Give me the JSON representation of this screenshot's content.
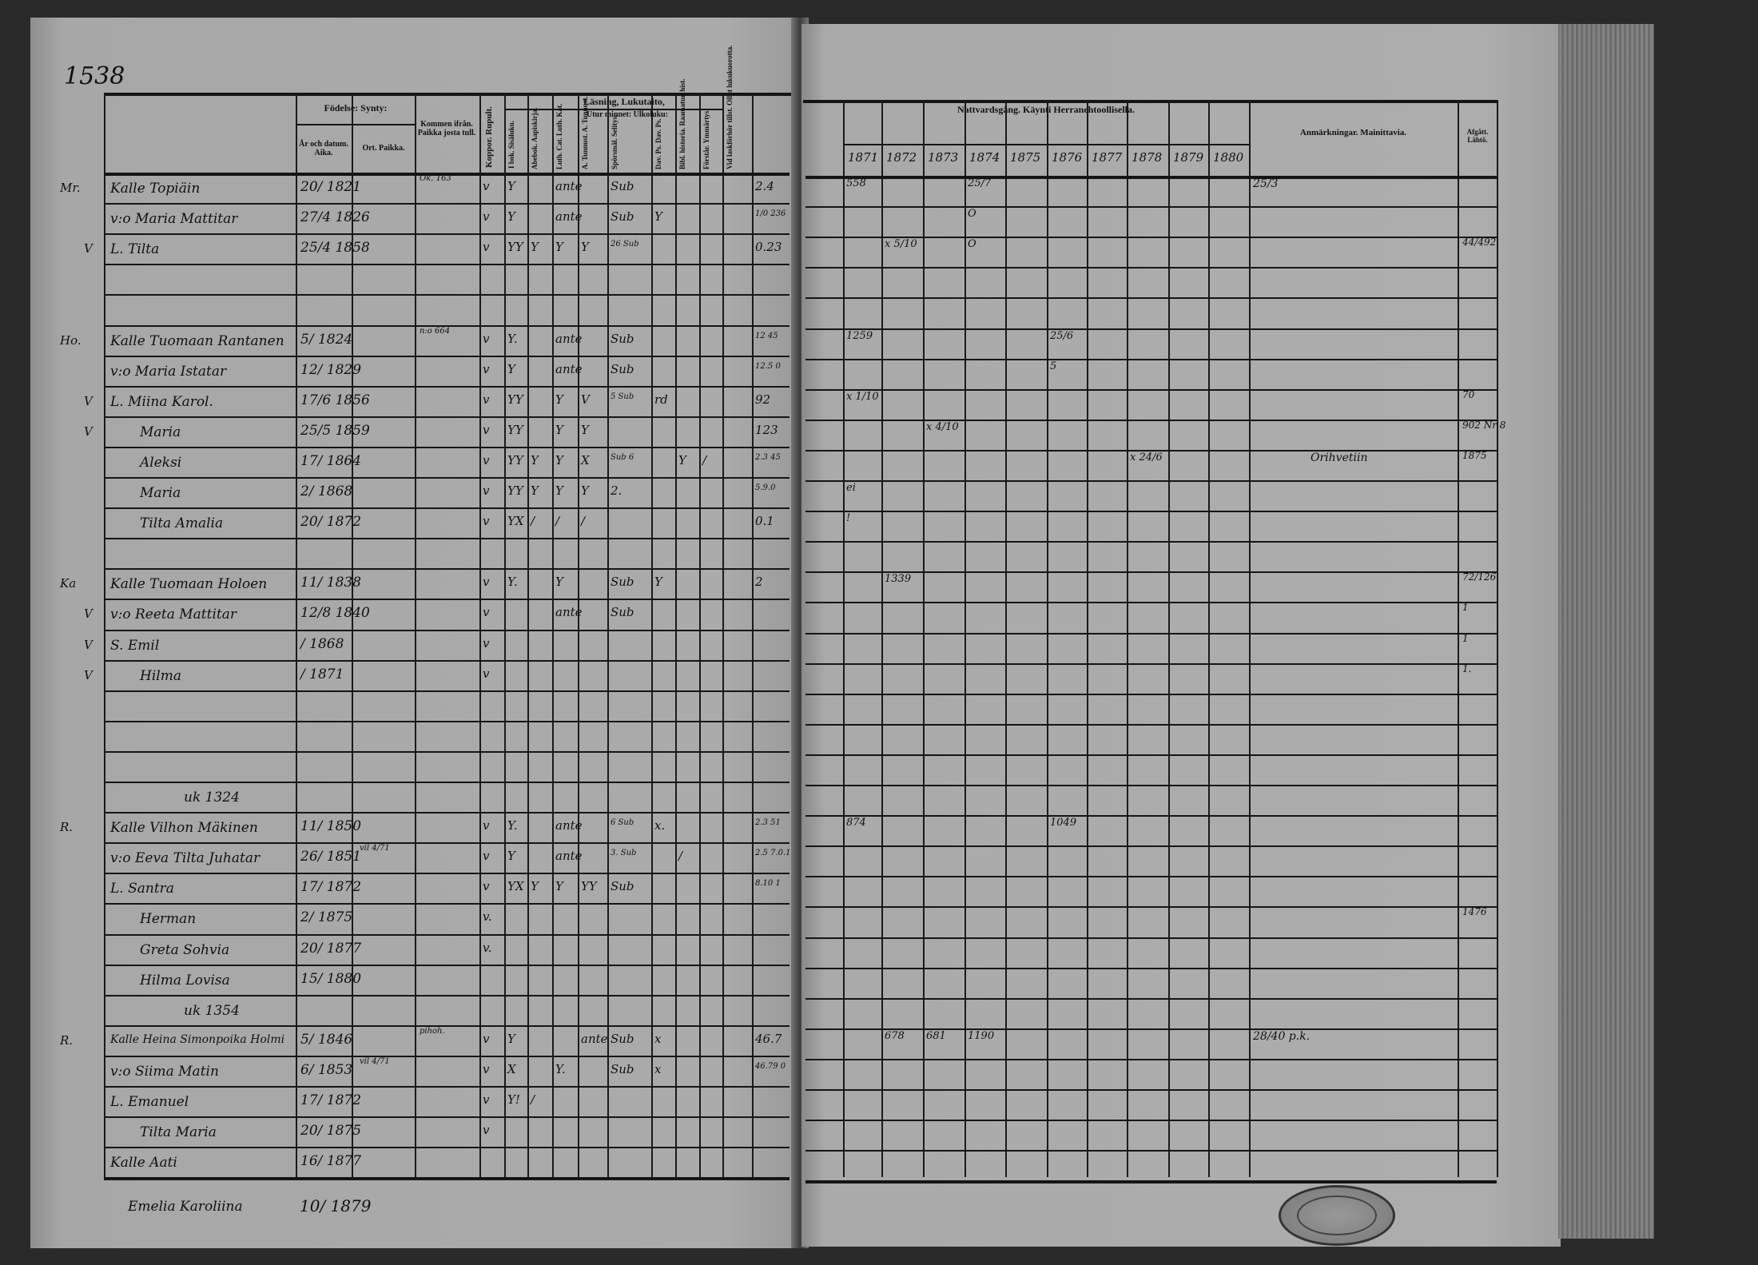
{
  "page_number": "1538",
  "left_header": {
    "birth_group": "Födelse: Synty:",
    "birth_date": "År och datum. Aika.",
    "birth_place": "Ort. Paikka.",
    "came_from": "Kommen ifrån. Paikka josta tull.",
    "vaccination": "Koppor. Rupult.",
    "reading_group": "Läsning, Lukutaito,",
    "memory_group": "Utur minnet: Ulkoluku:",
    "columns": [
      "I bok. Sisäluku.",
      "Abebok. Aapiskirja.",
      "Luth. Cat. Luth. Kat.",
      "A. Tunnust. A. Tunnust.",
      "Spörsmål. Selitys.",
      "Dav. Ps. Dav. Ps.",
      "Bibl. historia. Raamatun hist.",
      "Förstår. Ymmärtys.",
      "Vid laskförhör tillst. Ollut lukukuorotta."
    ]
  },
  "right_header": {
    "communion_group": "Nattvardsgång. Käynti Herranehtoollisella.",
    "years": [
      "1871",
      "1872",
      "1873",
      "1874",
      "1875",
      "1876",
      "1877",
      "1878",
      "1879",
      "1880"
    ],
    "remarks": "Anmärkningar. Mainittavia.",
    "departed": "Afgått. Lähtö."
  },
  "rows": [
    {
      "margin": "Mr.",
      "name": "Kalle Topiäin",
      "birth": "20/ 1821",
      "came": "Ok. 163",
      "marks": [
        "v",
        "Y",
        "",
        "ante",
        "",
        "Sub",
        "",
        "",
        "",
        "",
        "2.4",
        ""
      ],
      "communion": [
        "558",
        "",
        "",
        "25/7",
        "",
        "",
        "",
        "",
        "",
        ""
      ],
      "remarks": "25/3",
      "departed": ""
    },
    {
      "margin": "",
      "name": "v:o Maria Mattitar",
      "birth": "27/4 1826",
      "came": "",
      "marks": [
        "v",
        "Y",
        "",
        "ante",
        "",
        "Sub",
        "Y",
        "",
        "",
        "",
        "1/0 236",
        ""
      ],
      "communion": [
        "",
        "",
        "",
        "O",
        "",
        "",
        "",
        "",
        "",
        ""
      ],
      "remarks": "",
      "departed": ""
    },
    {
      "margin": "V",
      "name": "L. Tilta",
      "birth": "25/4 1858",
      "came": "",
      "marks": [
        "v",
        "YY",
        "Y",
        "Y",
        "Y",
        "26 Sub",
        "",
        "",
        "",
        "",
        "0.23",
        ""
      ],
      "communion": [
        "",
        "x 5/10",
        "",
        "O",
        "",
        "",
        "",
        "",
        "",
        ""
      ],
      "remarks": "",
      "departed": "44/492"
    },
    {
      "margin": "",
      "name": "",
      "birth": "",
      "came": "",
      "marks": [],
      "communion": [],
      "remarks": "",
      "departed": ""
    },
    {
      "margin": "",
      "name": "",
      "birth": "",
      "came": "",
      "marks": [],
      "communion": [],
      "remarks": "",
      "departed": ""
    },
    {
      "margin": "Ho.",
      "name": "Kalle Tuomaan Rantanen",
      "birth": "5/ 1824",
      "came": "n:o 664",
      "marks": [
        "v",
        "Y.",
        "",
        "ante",
        "",
        "Sub",
        "",
        "",
        "",
        "",
        "12 45",
        ""
      ],
      "communion": [
        "1259",
        "",
        "",
        "",
        "",
        "25/6",
        "",
        "",
        "",
        ""
      ],
      "remarks": "",
      "departed": ""
    },
    {
      "margin": "",
      "name": "v:o Maria Istatar",
      "birth": "12/ 1829",
      "came": "",
      "marks": [
        "v",
        "Y",
        "",
        "ante",
        "",
        "Sub",
        "",
        "",
        "",
        "",
        "12.5 0",
        ""
      ],
      "communion": [
        "",
        "",
        "",
        "",
        "",
        "5",
        "",
        "",
        "",
        ""
      ],
      "remarks": "",
      "departed": ""
    },
    {
      "margin": "V",
      "name": "L. Miina Karol.",
      "birth": "17/6 1856",
      "came": "",
      "marks": [
        "v",
        "YY",
        "",
        "Y",
        "V",
        "5 Sub",
        "rd",
        "",
        "",
        "",
        "92",
        ""
      ],
      "communion": [
        "x 1/10",
        "",
        "",
        "",
        "",
        "",
        "",
        "",
        "",
        ""
      ],
      "remarks": "",
      "departed": "70"
    },
    {
      "margin": "V",
      "name": "Maria",
      "birth": "25/5 1859",
      "came": "",
      "marks": [
        "v",
        "YY",
        "",
        "Y",
        "Y",
        "",
        "",
        "",
        "",
        "",
        "123",
        ""
      ],
      "communion": [
        "",
        "",
        "x 4/10",
        "",
        "",
        "",
        "",
        "",
        "",
        ""
      ],
      "remarks": "",
      "departed": "902 Nr 8"
    },
    {
      "margin": "",
      "name": "Aleksi",
      "birth": "17/ 1864",
      "came": "",
      "marks": [
        "v",
        "YY",
        "Y",
        "Y",
        "X",
        "Sub 6",
        "",
        "Y",
        "/",
        "",
        "2.3 45",
        ""
      ],
      "communion": [
        "",
        "",
        "",
        "",
        "",
        "",
        "",
        "x 24/6",
        "",
        ""
      ],
      "remarks": "Orihvetiin",
      "departed": "1875"
    },
    {
      "margin": "",
      "name": "Maria",
      "birth": "2/ 1868",
      "came": "",
      "marks": [
        "v",
        "YY",
        "Y",
        "Y",
        "Y",
        "2.",
        "",
        "",
        "",
        "",
        "5.9.0",
        ""
      ],
      "communion": [
        "ei",
        "",
        "",
        "",
        "",
        "",
        "",
        "",
        "",
        ""
      ],
      "remarks": "",
      "departed": ""
    },
    {
      "margin": "",
      "name": "Tilta Amalia",
      "birth": "20/ 1872",
      "came": "",
      "marks": [
        "v",
        "YX",
        "/",
        "/",
        "/",
        "",
        "",
        "",
        "",
        "",
        "0.1",
        ""
      ],
      "communion": [
        "!",
        "",
        "",
        "",
        "",
        "",
        "",
        "",
        "",
        ""
      ],
      "remarks": "",
      "departed": ""
    },
    {
      "margin": "",
      "name": "",
      "birth": "",
      "came": "",
      "marks": [],
      "communion": [],
      "remarks": "",
      "departed": ""
    },
    {
      "margin": "Ka",
      "name": "Kalle Tuomaan Holoen",
      "birth": "11/ 1838",
      "came": "",
      "marks": [
        "v",
        "Y.",
        "",
        "Y",
        "",
        "Sub",
        "Y",
        "",
        "",
        "",
        "2",
        ""
      ],
      "communion": [
        "",
        "1339",
        "",
        "",
        "",
        "",
        "",
        "",
        "",
        ""
      ],
      "remarks": "",
      "departed": "72/126"
    },
    {
      "margin": "V",
      "name": "v:o Reeta Mattitar",
      "birth": "12/8 1840",
      "came": "",
      "marks": [
        "v",
        "",
        "",
        "ante",
        "",
        "Sub",
        "",
        "",
        "",
        "",
        "",
        ""
      ],
      "communion": [],
      "remarks": "",
      "departed": "1"
    },
    {
      "margin": "V",
      "name": "S. Emil",
      "birth": "/ 1868",
      "came": "",
      "marks": [
        "v"
      ],
      "communion": [],
      "remarks": "",
      "departed": "1"
    },
    {
      "margin": "V",
      "name": "Hilma",
      "birth": "/ 1871",
      "came": "",
      "marks": [
        "v"
      ],
      "communion": [],
      "remarks": "",
      "departed": "1."
    },
    {
      "margin": "",
      "name": "",
      "birth": "",
      "came": "",
      "marks": [],
      "communion": [],
      "remarks": "",
      "departed": ""
    },
    {
      "margin": "",
      "name": "",
      "birth": "",
      "came": "",
      "marks": [],
      "communion": [],
      "remarks": "",
      "departed": ""
    },
    {
      "margin": "",
      "name": "",
      "birth": "",
      "came": "",
      "marks": [],
      "communion": [],
      "remarks": "",
      "departed": ""
    },
    {
      "margin": "",
      "name": "uk 1324",
      "birth": "",
      "came": "",
      "marks": [],
      "communion": [],
      "remarks": "",
      "departed": ""
    },
    {
      "margin": "R.",
      "name": "Kalle Vilhon Mäkinen",
      "birth": "11/ 1850",
      "came": "",
      "marks": [
        "v",
        "Y.",
        "",
        "ante",
        "",
        "6 Sub",
        "x.",
        "",
        "",
        "",
        "2.3 51",
        ""
      ],
      "communion": [
        "874",
        "",
        "",
        "",
        "",
        "1049",
        "",
        "",
        "",
        ""
      ],
      "remarks": "",
      "departed": ""
    },
    {
      "margin": "",
      "name": "v:o Eeva Tilta Juhatar",
      "birth": "26/ 1851",
      "came": "vil 4/71",
      "marks": [
        "v",
        "Y",
        "",
        "ante",
        "",
        "3. Sub",
        "",
        "/",
        "",
        "",
        "2.5 7.0.1",
        ""
      ],
      "communion": [],
      "remarks": "",
      "departed": ""
    },
    {
      "margin": "",
      "name": "L. Santra",
      "birth": "17/ 1872",
      "came": "",
      "marks": [
        "v",
        "YX",
        "Y",
        "Y",
        "YY",
        "Sub",
        "",
        "",
        "",
        "",
        "8.10 1",
        ""
      ],
      "communion": [],
      "remarks": "",
      "departed": ""
    },
    {
      "margin": "",
      "name": "Herman",
      "birth": "2/ 1875",
      "came": "",
      "marks": [
        "v."
      ],
      "communion": [],
      "remarks": "",
      "departed": "1476"
    },
    {
      "margin": "",
      "name": "Greta Sohvia",
      "birth": "20/ 1877",
      "came": "",
      "marks": [
        "v."
      ],
      "communion": [],
      "remarks": "",
      "departed": ""
    },
    {
      "margin": "",
      "name": "Hilma Lovisa",
      "birth": "15/ 1880",
      "came": "",
      "marks": [],
      "communion": [],
      "remarks": "",
      "departed": ""
    },
    {
      "margin": "",
      "name": "uk 1354",
      "birth": "",
      "came": "",
      "marks": [],
      "communion": [],
      "remarks": "",
      "departed": ""
    },
    {
      "margin": "R.",
      "name": "Kalle Heina Simonpoika Holmi",
      "birth": "5/ 1846",
      "came": "pihoh.",
      "marks": [
        "v",
        "Y",
        "",
        "",
        "ante",
        "Sub",
        "x",
        "",
        "",
        "",
        "46.7",
        ""
      ],
      "communion": [
        "",
        "678",
        "681",
        "1190",
        "",
        "",
        "",
        "",
        "",
        ""
      ],
      "remarks": "28/40 p.k.",
      "departed": ""
    },
    {
      "margin": "",
      "name": "v:o Siima Matin",
      "birth": "6/ 1853",
      "came": "vil 4/71",
      "marks": [
        "v",
        "X",
        "",
        "Y.",
        "",
        "Sub",
        "x",
        "",
        "",
        "",
        "46.79 0",
        ""
      ],
      "communion": [],
      "remarks": "",
      "departed": ""
    },
    {
      "margin": "",
      "name": "L. Emanuel",
      "birth": "17/ 1872",
      "came": "",
      "marks": [
        "v",
        "Y!",
        "/"
      ],
      "communion": [],
      "remarks": "",
      "departed": ""
    },
    {
      "margin": "",
      "name": "Tilta Maria",
      "birth": "20/ 1875",
      "came": "",
      "marks": [
        "v"
      ],
      "communion": [],
      "remarks": "",
      "departed": ""
    },
    {
      "margin": "",
      "name": "Kalle Aati",
      "birth": "16/ 1877",
      "came": "",
      "marks": [],
      "communion": [],
      "remarks": "",
      "departed": ""
    }
  ],
  "footer_entry": {
    "name": "Emelia Karoliina",
    "birth": "10/ 1879"
  },
  "stamp": {
    "text": ""
  },
  "colors": {
    "paper": "#a9a9a9",
    "ink": "#111111",
    "background": "#2a2a2a"
  }
}
